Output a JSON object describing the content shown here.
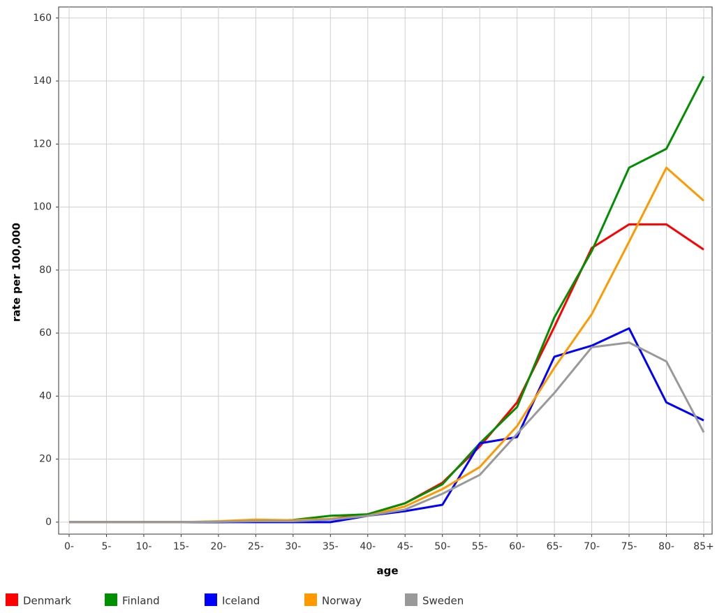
{
  "chart_data": {
    "type": "line",
    "x_label": "age",
    "y_label": "rate per 100,000",
    "categories": [
      "0-",
      "5-",
      "10-",
      "15-",
      "20-",
      "25-",
      "30-",
      "35-",
      "40-",
      "45-",
      "50-",
      "55-",
      "60-",
      "65-",
      "70-",
      "75-",
      "80-",
      "85+"
    ],
    "series": [
      {
        "name": "Denmark",
        "color": "#ff0000",
        "values": [
          0,
          0,
          0,
          0,
          0,
          0.3,
          0.5,
          1,
          2.5,
          6,
          12.5,
          24,
          38,
          62,
          87,
          94.5,
          94.5,
          86.5
        ]
      },
      {
        "name": "Finland",
        "color": "#008f00",
        "values": [
          0,
          0,
          0,
          0,
          0,
          0.3,
          0.7,
          2,
          2.5,
          6,
          12,
          25,
          36.5,
          65,
          86,
          112.5,
          118.5,
          141.5
        ]
      },
      {
        "name": "Iceland",
        "color": "#0000ff",
        "values": [
          0,
          0,
          0,
          0,
          0,
          0,
          0,
          0,
          2,
          3.5,
          5.5,
          25,
          27,
          52.5,
          56,
          61.5,
          38,
          32.3
        ]
      },
      {
        "name": "Norway",
        "color": "#ff9900",
        "values": [
          0,
          0,
          0,
          0,
          0.3,
          0.8,
          0.6,
          1,
          2,
          5,
          10.5,
          17.5,
          30.5,
          49,
          66,
          89,
          112.5,
          102
        ]
      },
      {
        "name": "Sweden",
        "color": "#999999",
        "values": [
          0,
          0,
          0,
          0,
          0.1,
          0.3,
          0.3,
          0.8,
          2,
          4,
          9,
          15,
          28,
          41,
          55.5,
          57,
          51,
          28.5
        ]
      }
    ],
    "ylim": [
      -3.8,
      163.5
    ],
    "yticks": [
      0,
      20,
      40,
      60,
      80,
      100,
      120,
      140,
      160
    ],
    "grid": true
  }
}
